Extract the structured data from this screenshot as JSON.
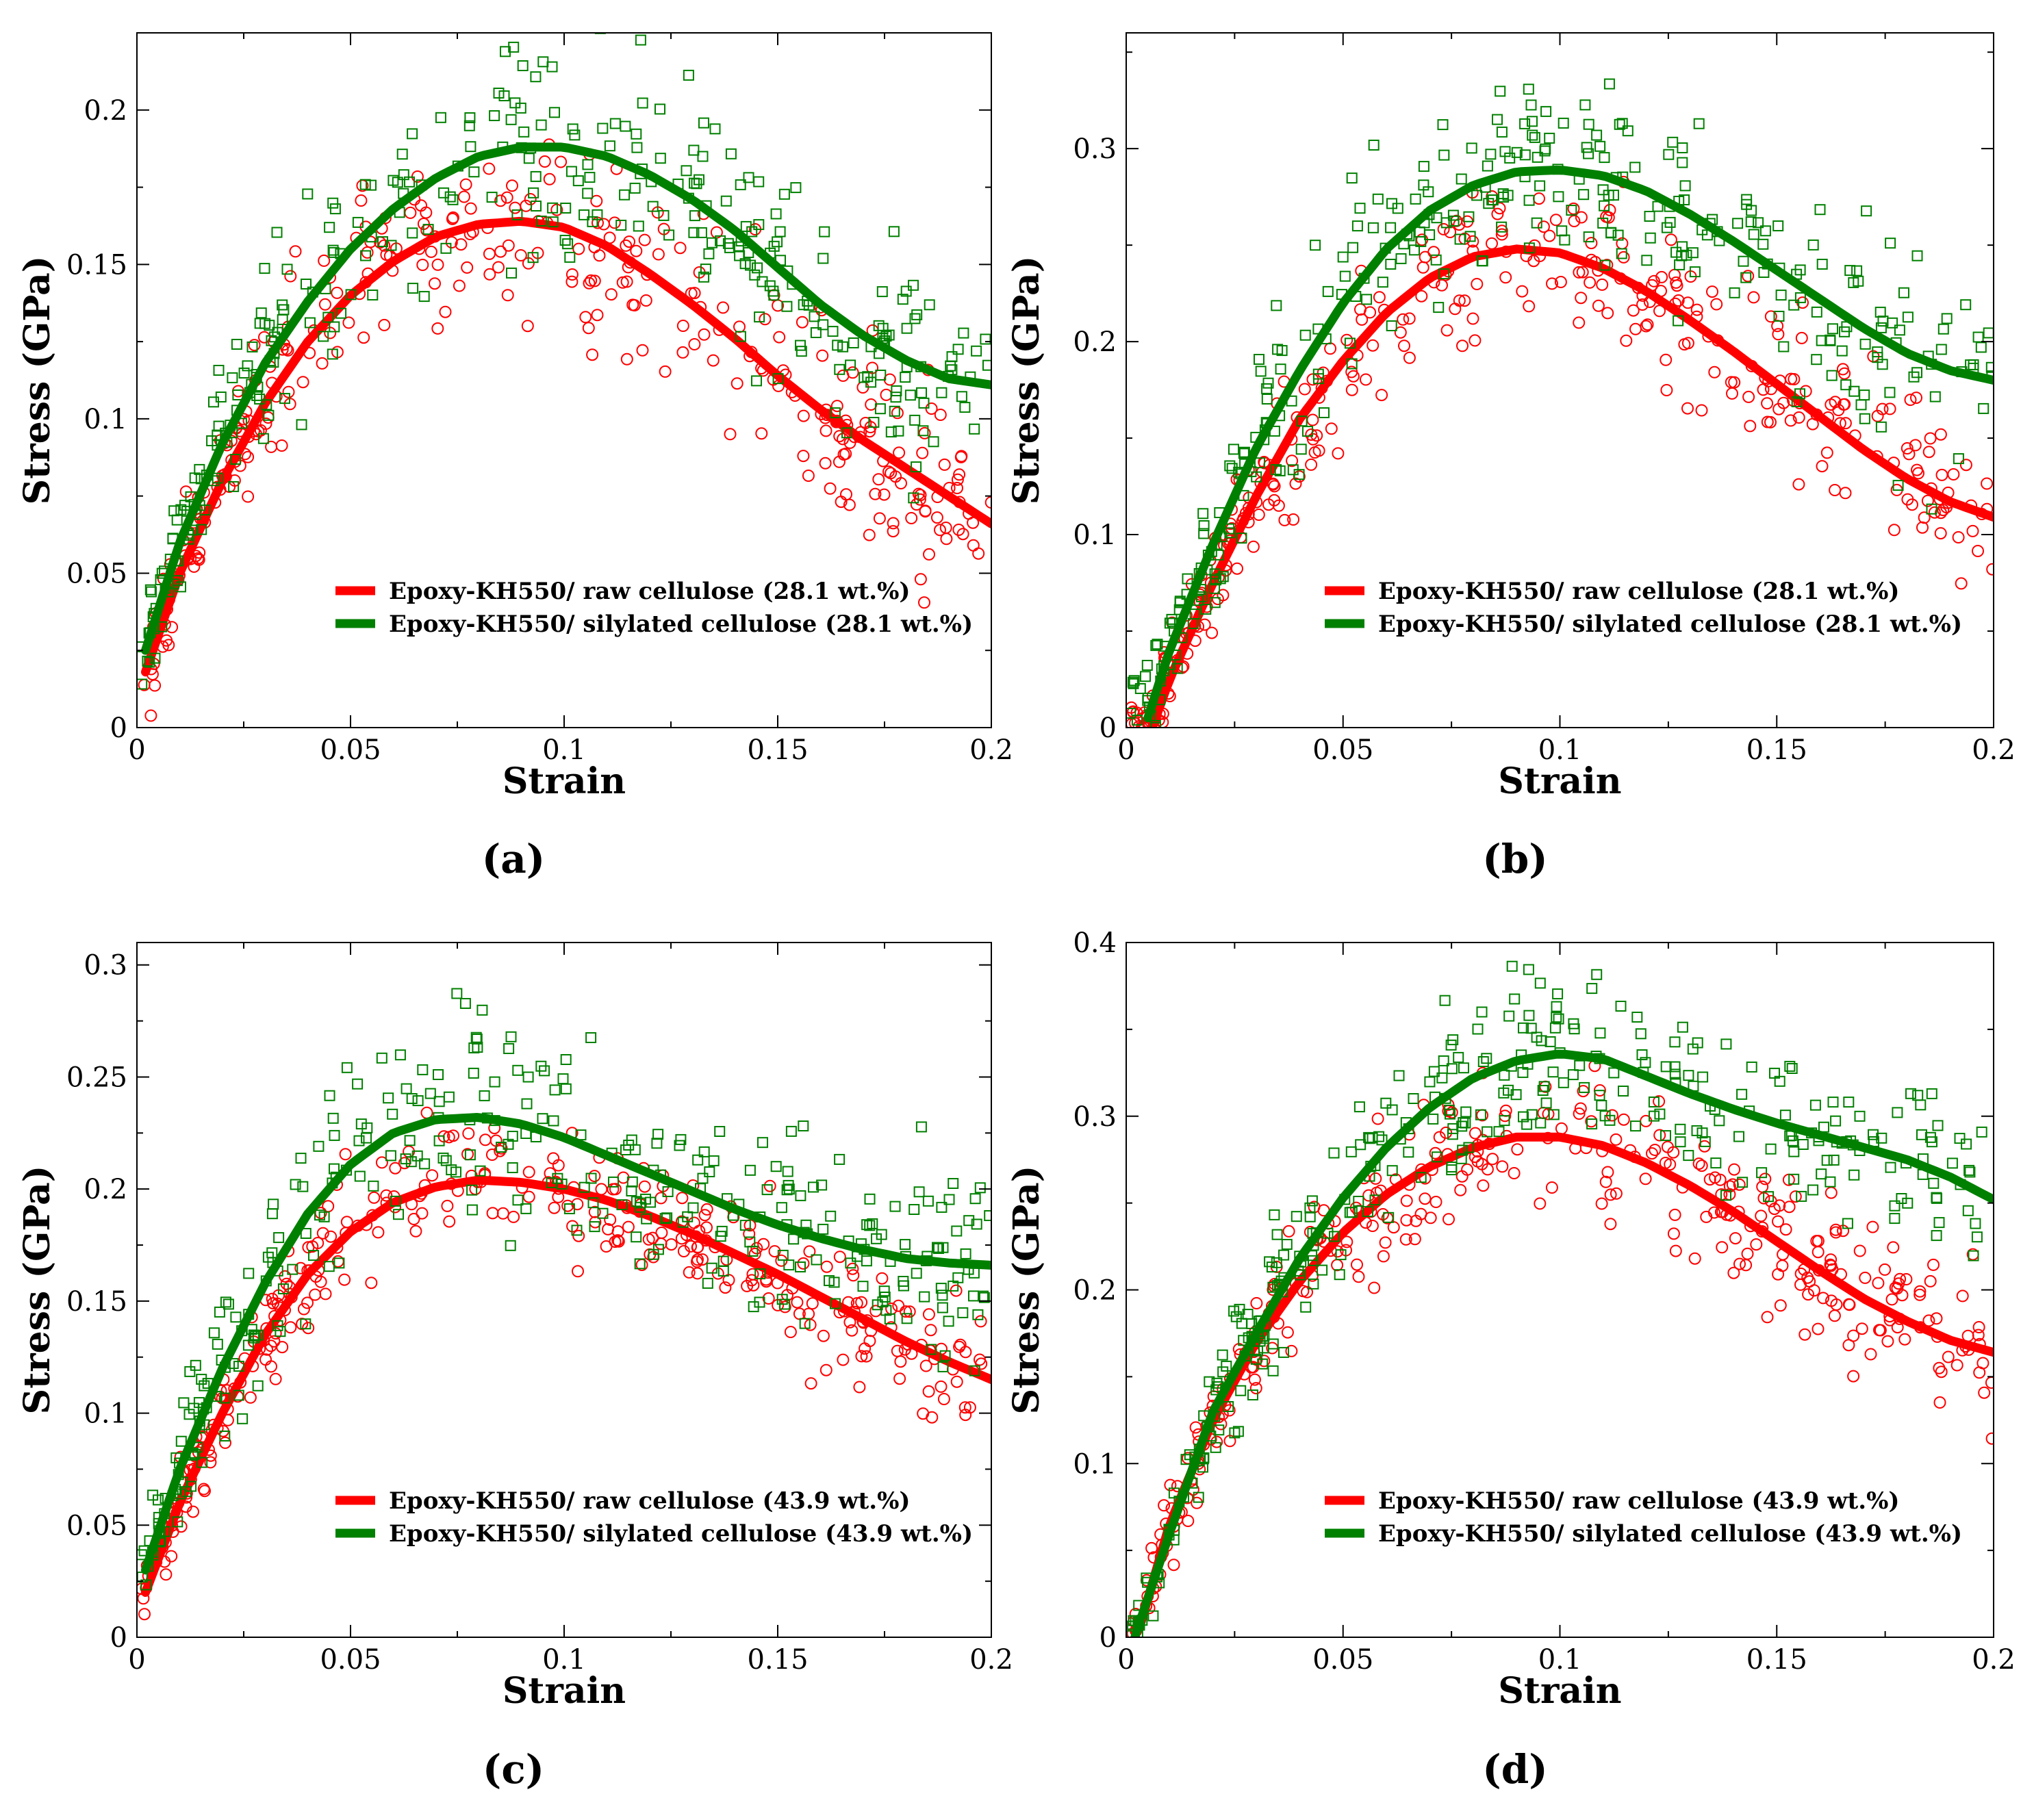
{
  "colors": {
    "raw": "#ff0000",
    "silylated": "#008000",
    "axis": "#000000"
  },
  "chart_data": [
    {
      "type": "scatter",
      "panel_label": "(a)",
      "xlabel": "Strain",
      "ylabel": "Stress (GPa)",
      "xlim": [
        0,
        0.2
      ],
      "ylim": [
        0,
        0.225
      ],
      "xticks": [
        0,
        0.05,
        0.1,
        0.15,
        0.2
      ],
      "xtick_labels": [
        "0",
        "0.05",
        "0.1",
        "0.15",
        "0.2"
      ],
      "yticks": [
        0,
        0.05,
        0.1,
        0.15,
        0.2
      ],
      "ytick_labels": [
        "0",
        "0.05",
        "0.1",
        "0.15",
        "0.2"
      ],
      "legend_position": "lower-center",
      "series": [
        {
          "name": "Epoxy-KH550/ raw cellulose (28.1 wt.%)",
          "color": "raw",
          "marker": "circle",
          "fit": {
            "x": [
              0.002,
              0.01,
              0.02,
              0.03,
              0.04,
              0.05,
              0.06,
              0.07,
              0.08,
              0.09,
              0.1,
              0.11,
              0.12,
              0.13,
              0.14,
              0.15,
              0.16,
              0.17,
              0.18,
              0.19,
              0.2
            ],
            "y": [
              0.018,
              0.05,
              0.08,
              0.105,
              0.125,
              0.14,
              0.151,
              0.159,
              0.163,
              0.164,
              0.162,
              0.156,
              0.147,
              0.137,
              0.126,
              0.114,
              0.103,
              0.093,
              0.084,
              0.075,
              0.066
            ]
          },
          "noise": 0.022,
          "outlier_to": 0.008
        },
        {
          "name": "Epoxy-KH550/ silylated cellulose (28.1 wt.%)",
          "color": "silylated",
          "marker": "square",
          "fit": {
            "x": [
              0.002,
              0.01,
              0.02,
              0.03,
              0.04,
              0.05,
              0.06,
              0.07,
              0.08,
              0.09,
              0.1,
              0.11,
              0.12,
              0.13,
              0.14,
              0.15,
              0.16,
              0.17,
              0.18,
              0.19,
              0.2
            ],
            "y": [
              0.025,
              0.06,
              0.092,
              0.118,
              0.138,
              0.155,
              0.168,
              0.178,
              0.185,
              0.188,
              0.188,
              0.185,
              0.179,
              0.171,
              0.161,
              0.149,
              0.137,
              0.127,
              0.119,
              0.113,
              0.111
            ]
          },
          "noise": 0.026,
          "outlier_to": 0.0
        }
      ]
    },
    {
      "type": "scatter",
      "panel_label": "(b)",
      "xlabel": "Strain",
      "ylabel": "Stress (GPa)",
      "xlim": [
        0,
        0.2
      ],
      "ylim": [
        0,
        0.36
      ],
      "xticks": [
        0,
        0.05,
        0.1,
        0.15,
        0.2
      ],
      "xtick_labels": [
        "0",
        "0.05",
        "0.1",
        "0.15",
        "0.2"
      ],
      "yticks": [
        0,
        0.1,
        0.2,
        0.3
      ],
      "ytick_labels": [
        "0",
        "0.1",
        "0.2",
        "0.3"
      ],
      "legend_position": "lower-center",
      "series": [
        {
          "name": "Epoxy-KH550/ raw cellulose (28.1 wt.%)",
          "color": "raw",
          "marker": "circle",
          "fit": {
            "x": [
              0.006,
              0.01,
              0.02,
              0.03,
              0.04,
              0.05,
              0.06,
              0.07,
              0.08,
              0.09,
              0.1,
              0.11,
              0.12,
              0.13,
              0.14,
              0.15,
              0.16,
              0.17,
              0.18,
              0.19,
              0.2
            ],
            "y": [
              0.0,
              0.025,
              0.075,
              0.12,
              0.16,
              0.19,
              0.215,
              0.233,
              0.244,
              0.248,
              0.246,
              0.238,
              0.226,
              0.211,
              0.195,
              0.178,
              0.161,
              0.144,
              0.129,
              0.117,
              0.109
            ]
          },
          "noise": 0.03,
          "outlier_to": 0.0
        },
        {
          "name": "Epoxy-KH550/ silylated cellulose (28.1 wt.%)",
          "color": "silylated",
          "marker": "square",
          "fit": {
            "x": [
              0.005,
              0.01,
              0.02,
              0.03,
              0.04,
              0.05,
              0.06,
              0.07,
              0.08,
              0.09,
              0.1,
              0.11,
              0.12,
              0.13,
              0.14,
              0.15,
              0.16,
              0.17,
              0.18,
              0.19,
              0.2
            ],
            "y": [
              0.005,
              0.04,
              0.095,
              0.145,
              0.185,
              0.22,
              0.248,
              0.268,
              0.281,
              0.288,
              0.289,
              0.286,
              0.278,
              0.266,
              0.252,
              0.237,
              0.222,
              0.207,
              0.194,
              0.185,
              0.18
            ]
          },
          "noise": 0.038,
          "outlier_to": 0.0
        }
      ]
    },
    {
      "type": "scatter",
      "panel_label": "(c)",
      "xlabel": "Strain",
      "ylabel": "Stress (GPa)",
      "xlim": [
        0,
        0.2
      ],
      "ylim": [
        0,
        0.31
      ],
      "xticks": [
        0,
        0.05,
        0.1,
        0.15,
        0.2
      ],
      "xtick_labels": [
        "0",
        "0.05",
        "0.1",
        "0.15",
        "0.2"
      ],
      "yticks": [
        0,
        0.05,
        0.1,
        0.15,
        0.2,
        0.25,
        0.3
      ],
      "ytick_labels": [
        "0",
        "0.05",
        "0.1",
        "0.15",
        "0.2",
        "0.25",
        "0.3"
      ],
      "legend_position": "lower-center",
      "series": [
        {
          "name": "Epoxy-KH550/ raw cellulose (43.9 wt.%)",
          "color": "raw",
          "marker": "circle",
          "fit": {
            "x": [
              0.002,
              0.01,
              0.02,
              0.03,
              0.04,
              0.05,
              0.06,
              0.07,
              0.08,
              0.09,
              0.1,
              0.11,
              0.12,
              0.13,
              0.14,
              0.15,
              0.16,
              0.17,
              0.18,
              0.19,
              0.2
            ],
            "y": [
              0.02,
              0.06,
              0.1,
              0.135,
              0.162,
              0.181,
              0.194,
              0.201,
              0.204,
              0.203,
              0.2,
              0.195,
              0.188,
              0.18,
              0.171,
              0.162,
              0.152,
              0.142,
              0.132,
              0.123,
              0.115
            ]
          },
          "noise": 0.022,
          "outlier_to": 0.012
        },
        {
          "name": "Epoxy-KH550/ silylated cellulose (43.9 wt.%)",
          "color": "silylated",
          "marker": "square",
          "fit": {
            "x": [
              0.002,
              0.01,
              0.02,
              0.03,
              0.04,
              0.05,
              0.06,
              0.07,
              0.08,
              0.09,
              0.1,
              0.11,
              0.12,
              0.13,
              0.14,
              0.15,
              0.16,
              0.17,
              0.18,
              0.19,
              0.2
            ],
            "y": [
              0.03,
              0.075,
              0.12,
              0.158,
              0.189,
              0.211,
              0.225,
              0.231,
              0.232,
              0.229,
              0.223,
              0.215,
              0.207,
              0.199,
              0.191,
              0.184,
              0.178,
              0.173,
              0.169,
              0.167,
              0.166
            ]
          },
          "noise": 0.034,
          "outlier_to": 0.0
        }
      ]
    },
    {
      "type": "scatter",
      "panel_label": "(d)",
      "xlabel": "Strain",
      "ylabel": "Stress (GPa)",
      "xlim": [
        0,
        0.2
      ],
      "ylim": [
        0,
        0.4
      ],
      "xticks": [
        0,
        0.05,
        0.1,
        0.15,
        0.2
      ],
      "xtick_labels": [
        "0",
        "0.05",
        "0.1",
        "0.15",
        "0.2"
      ],
      "yticks": [
        0,
        0.1,
        0.2,
        0.3,
        0.4
      ],
      "ytick_labels": [
        "0",
        "0.1",
        "0.2",
        "0.3",
        "0.4"
      ],
      "legend_position": "lower-center",
      "series": [
        {
          "name": "Epoxy-KH550/ raw cellulose (43.9 wt.%)",
          "color": "raw",
          "marker": "circle",
          "fit": {
            "x": [
              0.003,
              0.01,
              0.02,
              0.03,
              0.04,
              0.05,
              0.06,
              0.07,
              0.08,
              0.09,
              0.1,
              0.11,
              0.12,
              0.13,
              0.14,
              0.15,
              0.16,
              0.17,
              0.18,
              0.19,
              0.2
            ],
            "y": [
              0.005,
              0.065,
              0.125,
              0.17,
              0.205,
              0.233,
              0.255,
              0.271,
              0.282,
              0.288,
              0.288,
              0.283,
              0.273,
              0.26,
              0.245,
              0.228,
              0.211,
              0.195,
              0.182,
              0.171,
              0.164
            ]
          },
          "noise": 0.03,
          "outlier_to": 0.0
        },
        {
          "name": "Epoxy-KH550/ silylated cellulose (43.9 wt.%)",
          "color": "silylated",
          "marker": "square",
          "fit": {
            "x": [
              0.002,
              0.01,
              0.02,
              0.03,
              0.04,
              0.05,
              0.06,
              0.07,
              0.08,
              0.09,
              0.1,
              0.11,
              0.12,
              0.13,
              0.14,
              0.15,
              0.16,
              0.17,
              0.18,
              0.19,
              0.2
            ],
            "y": [
              0.0,
              0.06,
              0.13,
              0.175,
              0.218,
              0.253,
              0.282,
              0.305,
              0.322,
              0.332,
              0.336,
              0.333,
              0.323,
              0.313,
              0.304,
              0.296,
              0.289,
              0.282,
              0.275,
              0.265,
              0.252
            ]
          },
          "noise": 0.034,
          "outlier_to": 0.0
        }
      ]
    }
  ]
}
